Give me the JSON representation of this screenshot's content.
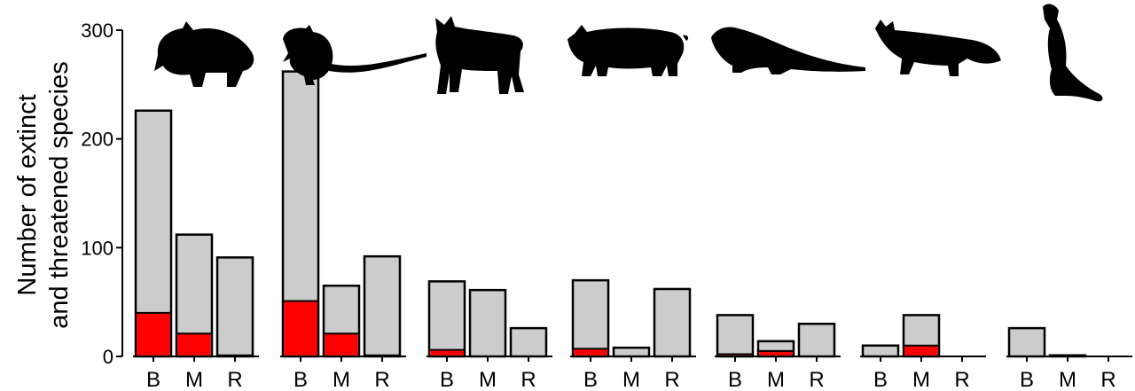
{
  "chart_data": {
    "type": "bar",
    "stacked": true,
    "ylabel_lines": [
      "Number of extinct",
      "and threatened species"
    ],
    "ylim": [
      0,
      300
    ],
    "yticks": [
      0,
      100,
      200,
      300
    ],
    "categories": [
      "B",
      "M",
      "R"
    ],
    "colors": {
      "total": "#cccccc",
      "extinct": "#ff0000",
      "outline": "#000000"
    },
    "groups": [
      {
        "animal": "cat-icon",
        "total": [
          226,
          112,
          91
        ],
        "extinct": [
          40,
          21,
          1
        ]
      },
      {
        "animal": "rat-icon",
        "total": [
          262,
          65,
          92
        ],
        "extinct": [
          51,
          21,
          1
        ]
      },
      {
        "animal": "dog-icon",
        "total": [
          69,
          61,
          26
        ],
        "extinct": [
          6,
          0,
          0
        ]
      },
      {
        "animal": "pig-icon",
        "total": [
          70,
          8,
          62
        ],
        "extinct": [
          7,
          0,
          0
        ]
      },
      {
        "animal": "mongoose-icon",
        "total": [
          38,
          14,
          30
        ],
        "extinct": [
          2,
          5,
          0
        ]
      },
      {
        "animal": "fox-icon",
        "total": [
          10,
          38,
          0
        ],
        "extinct": [
          0,
          10,
          0
        ]
      },
      {
        "animal": "stoat-icon",
        "total": [
          26,
          1,
          0
        ],
        "extinct": [
          0,
          0,
          0
        ]
      }
    ]
  }
}
